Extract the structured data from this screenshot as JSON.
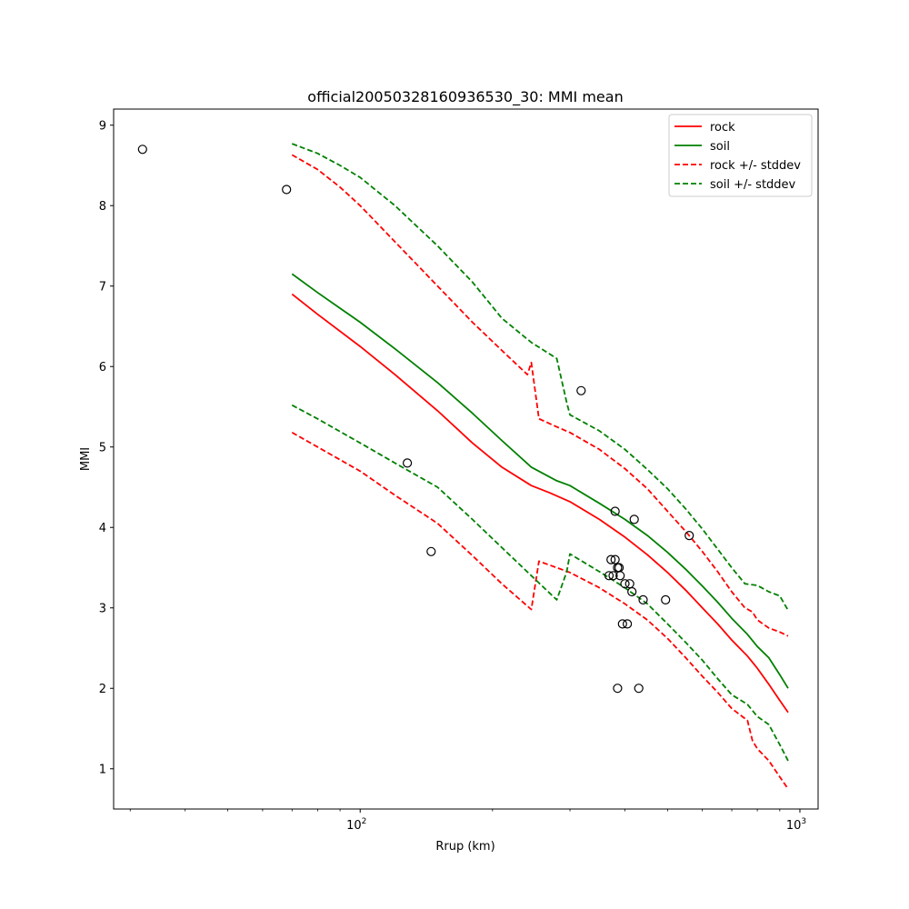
{
  "chart_data": {
    "type": "line",
    "title": "official20050328160936530_30: MMI mean",
    "xlabel": "Rrup (km)",
    "ylabel": "MMI",
    "xscale": "log",
    "xlim": [
      27.5,
      1100
    ],
    "ylim": [
      0.5,
      9.2
    ],
    "x_ticks": [
      {
        "value": 100,
        "base": "10",
        "exp": "2"
      },
      {
        "value": 1000,
        "base": "10",
        "exp": "3"
      }
    ],
    "y_ticks": [
      1,
      2,
      3,
      4,
      5,
      6,
      7,
      8,
      9
    ],
    "grid": false,
    "legend_position": "top-right",
    "series": [
      {
        "name": "rock",
        "color": "#ff0000",
        "style": "solid",
        "x": [
          70,
          80,
          100,
          120,
          150,
          180,
          210,
          245,
          270,
          300,
          350,
          400,
          450,
          500,
          550,
          600,
          650,
          700,
          760,
          800,
          850,
          900,
          940
        ],
        "y": [
          6.9,
          6.65,
          6.25,
          5.9,
          5.45,
          5.05,
          4.75,
          4.52,
          4.43,
          4.32,
          4.1,
          3.88,
          3.66,
          3.44,
          3.22,
          3.0,
          2.8,
          2.6,
          2.4,
          2.25,
          2.05,
          1.85,
          1.7
        ]
      },
      {
        "name": "soil",
        "color": "#008000",
        "style": "solid",
        "x": [
          70,
          80,
          100,
          120,
          150,
          180,
          210,
          245,
          280,
          300,
          350,
          400,
          450,
          500,
          550,
          600,
          650,
          700,
          760,
          800,
          850,
          900,
          940
        ],
        "y": [
          7.15,
          6.92,
          6.55,
          6.22,
          5.8,
          5.42,
          5.08,
          4.75,
          4.58,
          4.52,
          4.3,
          4.1,
          3.9,
          3.69,
          3.48,
          3.27,
          3.07,
          2.87,
          2.67,
          2.52,
          2.38,
          2.17,
          2.0
        ]
      },
      {
        "name": "rock +/- stddev",
        "color": "#ff0000",
        "style": "dashed",
        "x": [
          70,
          80,
          90,
          100,
          120,
          150,
          180,
          210,
          240,
          245,
          255,
          280,
          300,
          350,
          400,
          450,
          500,
          550,
          600,
          650,
          700,
          750,
          780,
          800,
          850,
          900,
          940
        ],
        "y": [
          8.63,
          8.45,
          8.23,
          8.0,
          7.55,
          7.0,
          6.55,
          6.2,
          5.9,
          6.05,
          5.35,
          5.25,
          5.18,
          4.97,
          4.73,
          4.48,
          4.2,
          3.95,
          3.7,
          3.45,
          3.2,
          3.0,
          2.95,
          2.85,
          2.75,
          2.7,
          2.65
        ]
      },
      {
        "name": "rock +/- stddev (lower)",
        "color": "#ff0000",
        "style": "dashed",
        "x": [
          70,
          80,
          100,
          120,
          150,
          180,
          210,
          245,
          255,
          280,
          300,
          350,
          400,
          450,
          500,
          550,
          600,
          650,
          700,
          760,
          780,
          800,
          850,
          900,
          940
        ],
        "y": [
          5.18,
          5.0,
          4.7,
          4.4,
          4.05,
          3.65,
          3.3,
          2.98,
          3.58,
          3.5,
          3.44,
          3.25,
          3.05,
          2.85,
          2.62,
          2.38,
          2.15,
          1.95,
          1.75,
          1.6,
          1.35,
          1.25,
          1.1,
          0.9,
          0.75
        ]
      },
      {
        "name": "soil +/- stddev",
        "color": "#008000",
        "style": "dashed",
        "x": [
          70,
          80,
          90,
          100,
          120,
          150,
          180,
          210,
          245,
          280,
          295,
          300,
          350,
          400,
          450,
          500,
          550,
          600,
          650,
          700,
          750,
          800,
          850,
          900,
          940
        ],
        "y": [
          8.77,
          8.65,
          8.5,
          8.35,
          8.0,
          7.5,
          7.05,
          6.6,
          6.3,
          6.1,
          5.55,
          5.4,
          5.2,
          4.97,
          4.72,
          4.48,
          4.23,
          3.98,
          3.73,
          3.5,
          3.3,
          3.28,
          3.2,
          3.15,
          2.97
        ]
      },
      {
        "name": "soil +/- stddev (lower)",
        "color": "#008000",
        "style": "dashed",
        "x": [
          70,
          80,
          100,
          120,
          150,
          180,
          210,
          245,
          280,
          295,
          300,
          350,
          400,
          450,
          500,
          550,
          600,
          650,
          700,
          760,
          800,
          850,
          900,
          940
        ],
        "y": [
          5.52,
          5.35,
          5.05,
          4.8,
          4.5,
          4.1,
          3.75,
          3.4,
          3.1,
          3.45,
          3.67,
          3.45,
          3.25,
          3.05,
          2.8,
          2.57,
          2.35,
          2.12,
          1.92,
          1.8,
          1.65,
          1.55,
          1.3,
          1.1
        ]
      }
    ],
    "observations": {
      "marker": "open-circle",
      "x": [
        32,
        68,
        128,
        145,
        318,
        368,
        372,
        376,
        380,
        385,
        388,
        390,
        395,
        400,
        405,
        410,
        415,
        420,
        380,
        440,
        495,
        560,
        385,
        430
      ],
      "y": [
        8.7,
        8.2,
        4.8,
        3.7,
        5.7,
        3.4,
        3.6,
        3.4,
        3.6,
        3.5,
        3.5,
        3.4,
        2.8,
        3.3,
        2.8,
        3.3,
        3.2,
        4.1,
        4.2,
        3.1,
        3.1,
        3.9,
        2.0,
        2.0
      ]
    }
  },
  "legend": [
    {
      "label": "rock",
      "color": "#ff0000",
      "style": "solid"
    },
    {
      "label": "soil",
      "color": "#008000",
      "style": "solid"
    },
    {
      "label": "rock +/- stddev",
      "color": "#ff0000",
      "style": "dashed"
    },
    {
      "label": "soil +/- stddev",
      "color": "#008000",
      "style": "dashed"
    }
  ]
}
